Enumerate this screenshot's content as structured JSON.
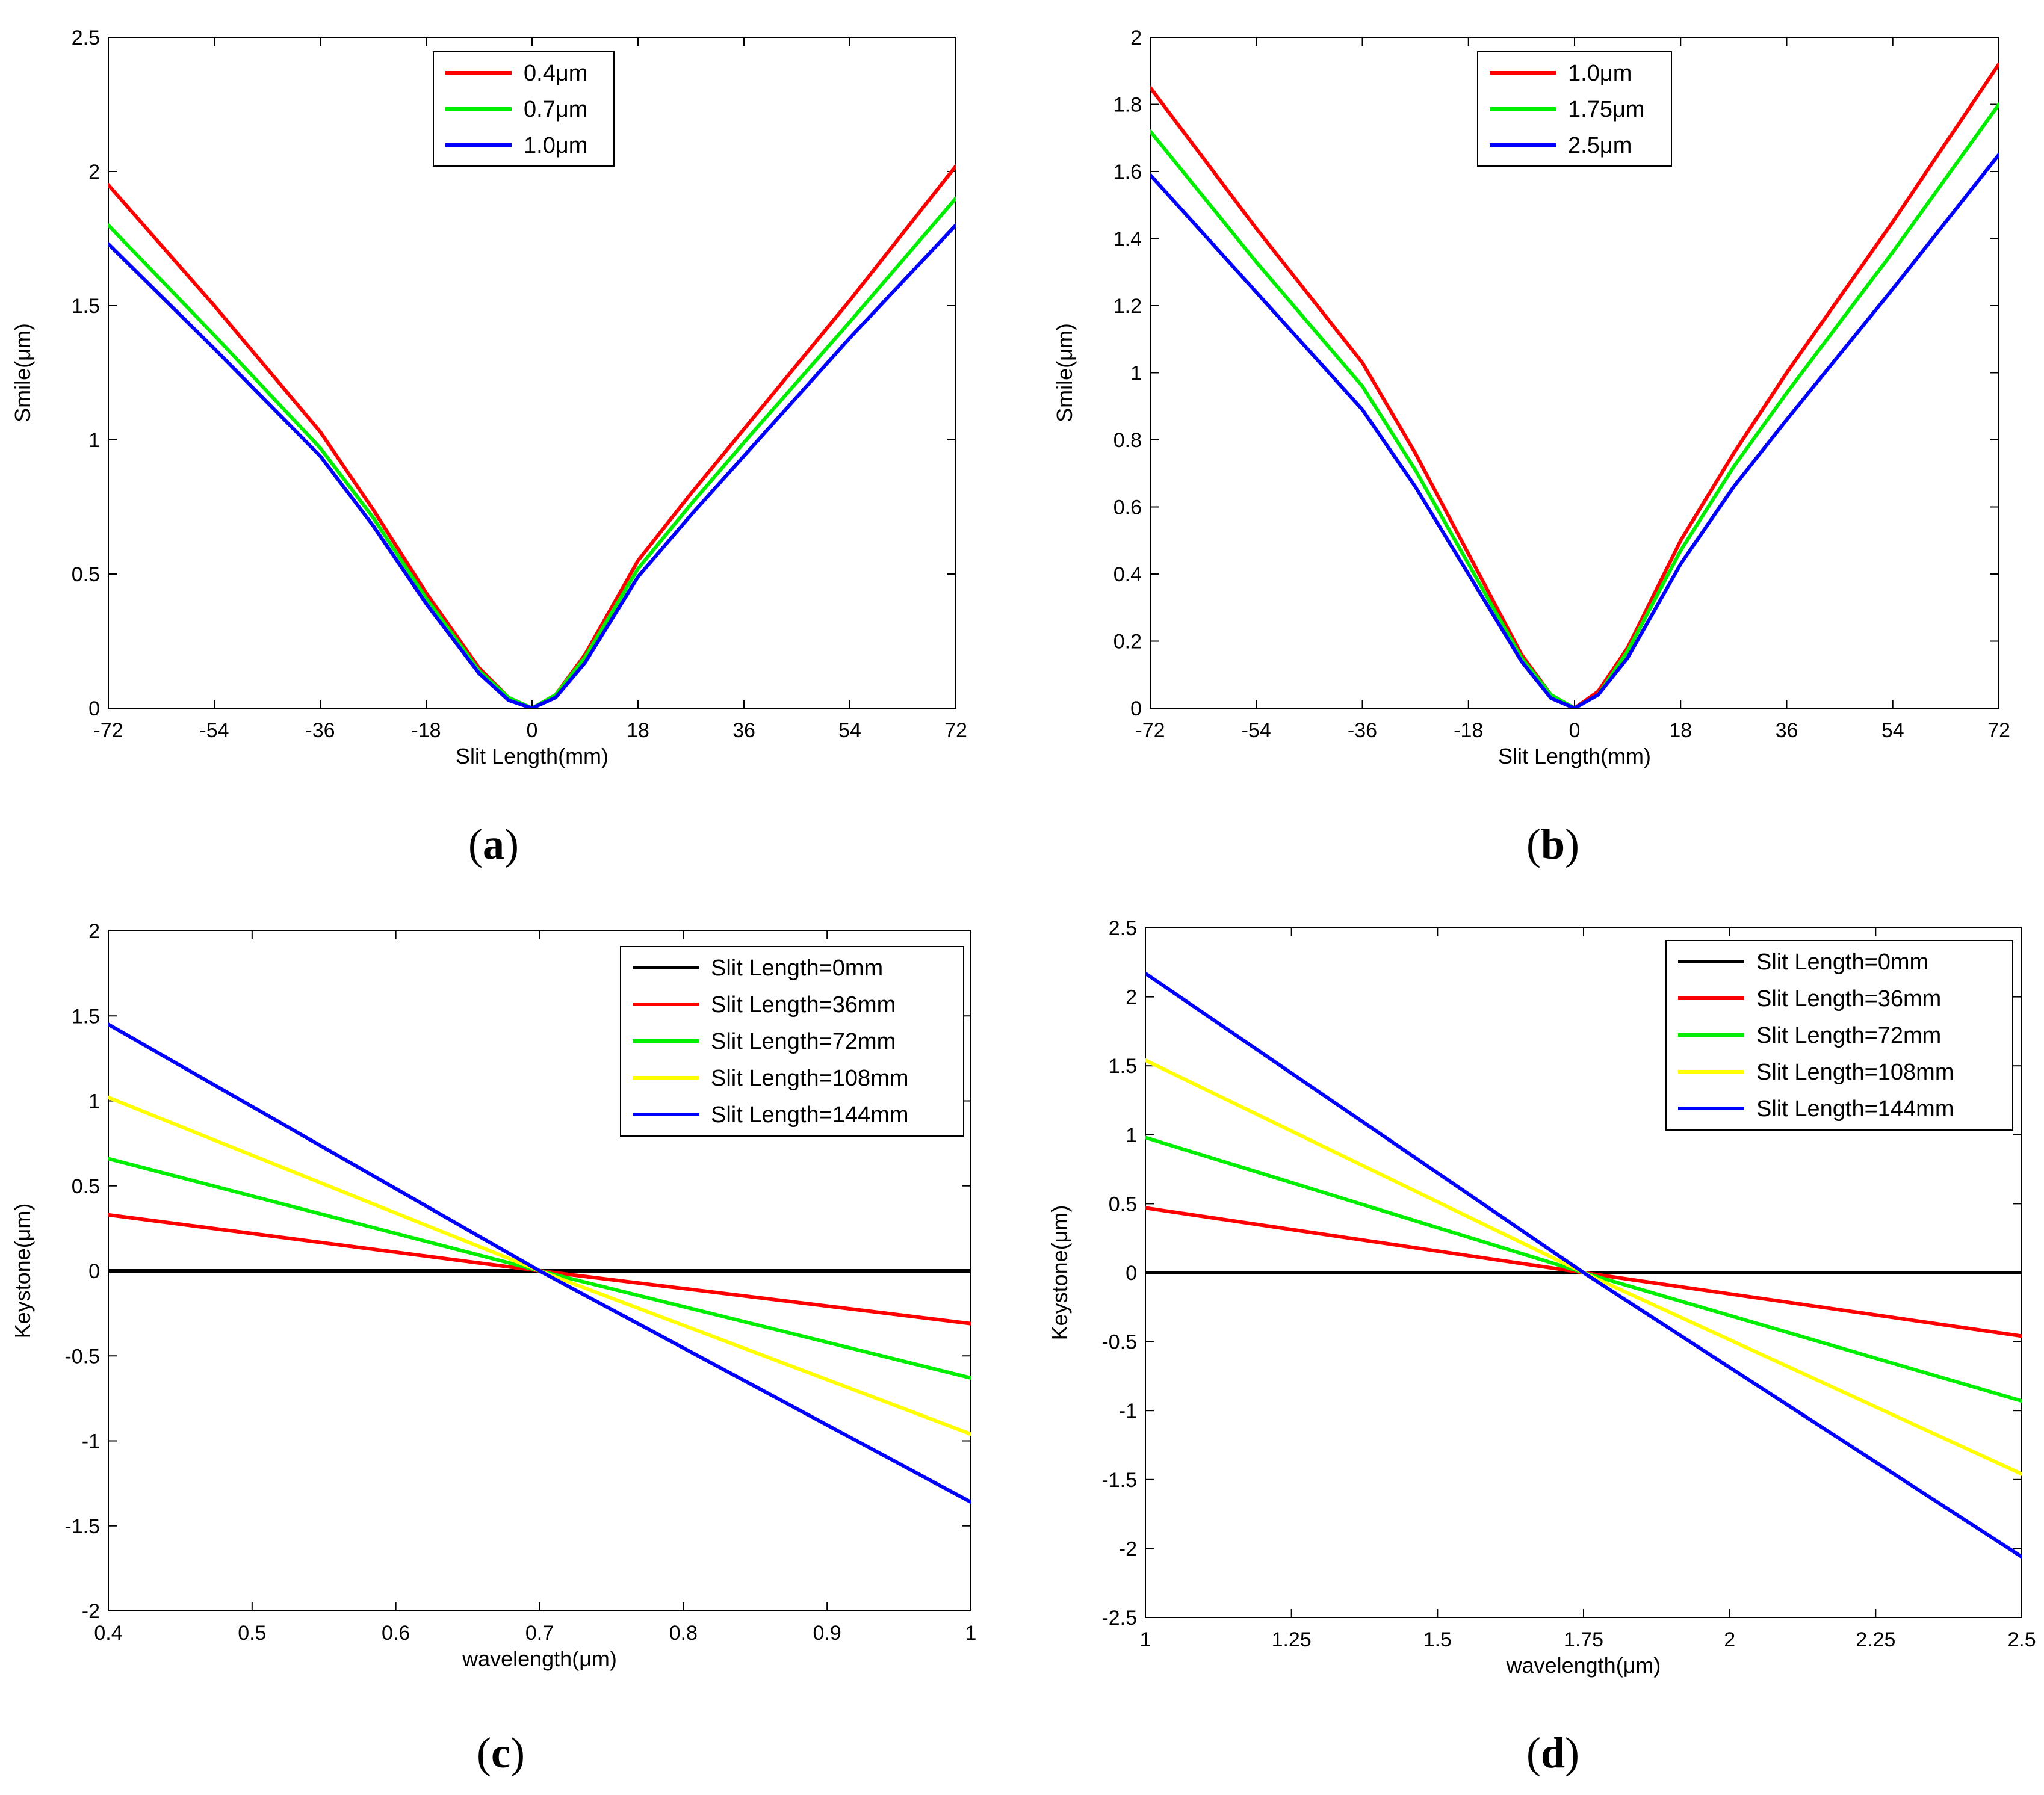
{
  "colors": {
    "red": "#ff0000",
    "green": "#00ee00",
    "blue": "#0000ff",
    "yellow": "#ffff00",
    "black": "#000000"
  },
  "chart_data": [
    {
      "panel": "a",
      "caption": "a",
      "type": "line",
      "xlabel": "Slit Length(mm)",
      "ylabel": "Smile(μm)",
      "xlim": [
        -72,
        72
      ],
      "ylim": [
        0,
        2.5
      ],
      "xticks": [
        -72,
        -54,
        -36,
        -18,
        0,
        18,
        36,
        54,
        72
      ],
      "yticks": [
        0,
        0.5,
        1,
        1.5,
        2,
        2.5
      ],
      "xtick_labels": [
        "-72",
        "-54",
        "-36",
        "-18",
        "0",
        "18",
        "36",
        "54",
        "72"
      ],
      "ytick_labels": [
        "0",
        "0.5",
        "1",
        "1.5",
        "2",
        "2.5"
      ],
      "legend_position": "top-center",
      "series": [
        {
          "name": "0.4μm",
          "color": "red",
          "x": [
            -72,
            -54,
            -36,
            -27,
            -18,
            -9,
            -4,
            0,
            4,
            9,
            18,
            27,
            36,
            54,
            72
          ],
          "y": [
            1.95,
            1.5,
            1.03,
            0.74,
            0.43,
            0.15,
            0.04,
            0.0,
            0.05,
            0.2,
            0.55,
            0.8,
            1.04,
            1.52,
            2.02
          ]
        },
        {
          "name": "0.7μm",
          "color": "green",
          "x": [
            -72,
            -54,
            -36,
            -27,
            -18,
            -9,
            -4,
            0,
            4,
            9,
            18,
            27,
            36,
            54,
            72
          ],
          "y": [
            1.8,
            1.39,
            0.97,
            0.71,
            0.41,
            0.14,
            0.04,
            0.0,
            0.05,
            0.19,
            0.52,
            0.76,
            0.99,
            1.44,
            1.9
          ]
        },
        {
          "name": "1.0μm",
          "color": "blue",
          "x": [
            -72,
            -54,
            -36,
            -27,
            -18,
            -9,
            -4,
            0,
            4,
            9,
            18,
            27,
            36,
            54,
            72
          ],
          "y": [
            1.73,
            1.34,
            0.94,
            0.68,
            0.39,
            0.13,
            0.03,
            0.0,
            0.04,
            0.17,
            0.49,
            0.72,
            0.94,
            1.38,
            1.8
          ]
        }
      ]
    },
    {
      "panel": "b",
      "caption": "b",
      "type": "line",
      "xlabel": "Slit Length(mm)",
      "ylabel": "Smile(μm)",
      "xlim": [
        -72,
        72
      ],
      "ylim": [
        0,
        2
      ],
      "xticks": [
        -72,
        -54,
        -36,
        -18,
        0,
        18,
        36,
        54,
        72
      ],
      "yticks": [
        0,
        0.2,
        0.4,
        0.6,
        0.8,
        1,
        1.2,
        1.4,
        1.6,
        1.8,
        2
      ],
      "xtick_labels": [
        "-72",
        "-54",
        "-36",
        "-18",
        "0",
        "18",
        "36",
        "54",
        "72"
      ],
      "ytick_labels": [
        "0",
        "0.2",
        "0.4",
        "0.6",
        "0.8",
        "1",
        "1.2",
        "1.4",
        "1.6",
        "1.8",
        "2"
      ],
      "legend_position": "top-center",
      "series": [
        {
          "name": "1.0μm",
          "color": "red",
          "x": [
            -72,
            -54,
            -36,
            -27,
            -18,
            -9,
            -4,
            0,
            4,
            9,
            18,
            27,
            36,
            54,
            72
          ],
          "y": [
            1.85,
            1.43,
            1.03,
            0.76,
            0.46,
            0.16,
            0.04,
            0.0,
            0.05,
            0.18,
            0.5,
            0.76,
            1.0,
            1.45,
            1.92
          ]
        },
        {
          "name": "1.75μm",
          "color": "green",
          "x": [
            -72,
            -54,
            -36,
            -27,
            -18,
            -9,
            -4,
            0,
            4,
            9,
            18,
            27,
            36,
            54,
            72
          ],
          "y": [
            1.72,
            1.33,
            0.96,
            0.71,
            0.43,
            0.15,
            0.04,
            0.0,
            0.04,
            0.17,
            0.47,
            0.72,
            0.94,
            1.36,
            1.8
          ]
        },
        {
          "name": "2.5μm",
          "color": "blue",
          "x": [
            -72,
            -54,
            -36,
            -27,
            -18,
            -9,
            -4,
            0,
            4,
            9,
            18,
            27,
            36,
            54,
            72
          ],
          "y": [
            1.59,
            1.24,
            0.89,
            0.66,
            0.4,
            0.14,
            0.03,
            0.0,
            0.04,
            0.15,
            0.43,
            0.66,
            0.86,
            1.25,
            1.65
          ]
        }
      ]
    },
    {
      "panel": "c",
      "caption": "c",
      "type": "line",
      "xlabel": "wavelength(μm)",
      "ylabel": "Keystone(μm)",
      "xlim": [
        0.4,
        1.0
      ],
      "ylim": [
        -2,
        2
      ],
      "xticks": [
        0.4,
        0.5,
        0.6,
        0.7,
        0.8,
        0.9,
        1.0
      ],
      "yticks": [
        -2,
        -1.5,
        -1,
        -0.5,
        0,
        0.5,
        1,
        1.5,
        2
      ],
      "xtick_labels": [
        "0.4",
        "0.5",
        "0.6",
        "0.7",
        "0.8",
        "0.9",
        "1"
      ],
      "ytick_labels": [
        "-2",
        "-1.5",
        "-1",
        "-0.5",
        "0",
        "0.5",
        "1",
        "1.5",
        "2"
      ],
      "legend_position": "top-right",
      "series": [
        {
          "name": "Slit Length=0mm",
          "color": "black",
          "x": [
            0.4,
            0.7,
            1.0
          ],
          "y": [
            0.0,
            0.0,
            0.0
          ]
        },
        {
          "name": "Slit Length=36mm",
          "color": "red",
          "x": [
            0.4,
            0.7,
            1.0
          ],
          "y": [
            0.33,
            0.0,
            -0.31
          ]
        },
        {
          "name": "Slit Length=72mm",
          "color": "green",
          "x": [
            0.4,
            0.7,
            1.0
          ],
          "y": [
            0.66,
            0.0,
            -0.63
          ]
        },
        {
          "name": "Slit Length=108mm",
          "color": "yellow",
          "x": [
            0.4,
            0.7,
            1.0
          ],
          "y": [
            1.02,
            0.0,
            -0.96
          ]
        },
        {
          "name": "Slit Length=144mm",
          "color": "blue",
          "x": [
            0.4,
            0.7,
            1.0
          ],
          "y": [
            1.45,
            0.0,
            -1.36
          ]
        }
      ]
    },
    {
      "panel": "d",
      "caption": "d",
      "type": "line",
      "xlabel": "wavelength(μm)",
      "ylabel": "Keystone(μm)",
      "xlim": [
        1.0,
        2.5
      ],
      "ylim": [
        -2.5,
        2.5
      ],
      "xticks": [
        1.0,
        1.25,
        1.5,
        1.75,
        2.0,
        2.25,
        2.5
      ],
      "yticks": [
        -2.5,
        -2,
        -1.5,
        -1,
        -0.5,
        0,
        0.5,
        1,
        1.5,
        2,
        2.5
      ],
      "xtick_labels": [
        "1",
        "1.25",
        "1.5",
        "1.75",
        "2",
        "2.25",
        "2.5"
      ],
      "ytick_labels": [
        "-2.5",
        "-2",
        "-1.5",
        "-1",
        "-0.5",
        "0",
        "0.5",
        "1",
        "1.5",
        "2",
        "2.5"
      ],
      "legend_position": "top-right",
      "series": [
        {
          "name": "Slit Length=0mm",
          "color": "black",
          "x": [
            1.0,
            1.75,
            2.5
          ],
          "y": [
            0.0,
            0.0,
            0.0
          ]
        },
        {
          "name": "Slit Length=36mm",
          "color": "red",
          "x": [
            1.0,
            1.75,
            2.5
          ],
          "y": [
            0.47,
            0.0,
            -0.46
          ]
        },
        {
          "name": "Slit Length=72mm",
          "color": "green",
          "x": [
            1.0,
            1.75,
            2.5
          ],
          "y": [
            0.98,
            0.0,
            -0.93
          ]
        },
        {
          "name": "Slit Length=108mm",
          "color": "yellow",
          "x": [
            1.0,
            1.75,
            2.5
          ],
          "y": [
            1.54,
            0.0,
            -1.46
          ]
        },
        {
          "name": "Slit Length=144mm",
          "color": "blue",
          "x": [
            1.0,
            1.75,
            2.5
          ],
          "y": [
            2.17,
            0.0,
            -2.06
          ]
        }
      ]
    }
  ]
}
